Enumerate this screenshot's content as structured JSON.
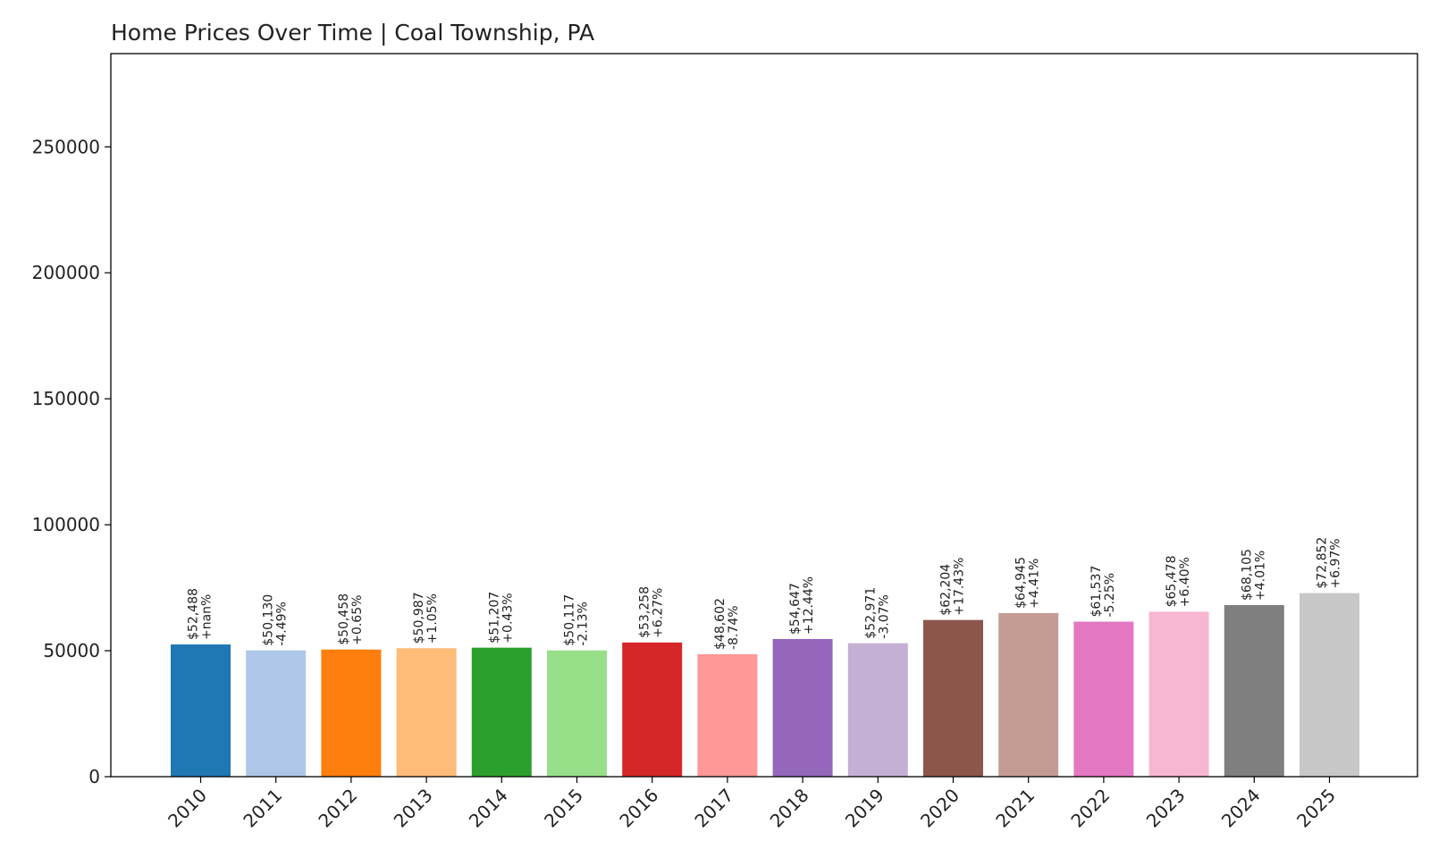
{
  "chart_data": {
    "type": "bar",
    "title": "Home Prices Over Time | Coal Township, PA",
    "xlabel": "",
    "ylabel": "",
    "ylim": [
      0,
      287000
    ],
    "yticks": [
      0,
      50000,
      100000,
      150000,
      200000,
      250000
    ],
    "ytick_labels": [
      "0",
      "50000",
      "100000",
      "150000",
      "200000",
      "250000"
    ],
    "grid": false,
    "categories": [
      "2010",
      "2011",
      "2012",
      "2013",
      "2014",
      "2015",
      "2016",
      "2017",
      "2018",
      "2019",
      "2020",
      "2021",
      "2022",
      "2023",
      "2024",
      "2025"
    ],
    "values": [
      52488,
      50130,
      50458,
      50987,
      51207,
      50117,
      53258,
      48602,
      54647,
      52971,
      62204,
      64945,
      61537,
      65478,
      68105,
      72852
    ],
    "price_labels": [
      "$52,488",
      "$50,130",
      "$50,458",
      "$50,987",
      "$51,207",
      "$50,117",
      "$53,258",
      "$48,602",
      "$54,647",
      "$52,971",
      "$62,204",
      "$64,945",
      "$61,537",
      "$65,478",
      "$68,105",
      "$72,852"
    ],
    "change_labels": [
      "+nan%",
      "-4.49%",
      "+0.65%",
      "+1.05%",
      "+0.43%",
      "-2.13%",
      "+6.27%",
      "-8.74%",
      "+12.44%",
      "-3.07%",
      "+17.43%",
      "+4.41%",
      "-5.25%",
      "+6.40%",
      "+4.01%",
      "+6.97%"
    ],
    "colors": [
      "#1f77b4",
      "#aec7e8",
      "#ff7f0e",
      "#ffbb78",
      "#2ca02c",
      "#98df8a",
      "#d62728",
      "#ff9896",
      "#9467bd",
      "#c5b0d5",
      "#8c564b",
      "#c49c94",
      "#e377c2",
      "#f7b6d2",
      "#7f7f7f",
      "#c7c7c7"
    ]
  }
}
